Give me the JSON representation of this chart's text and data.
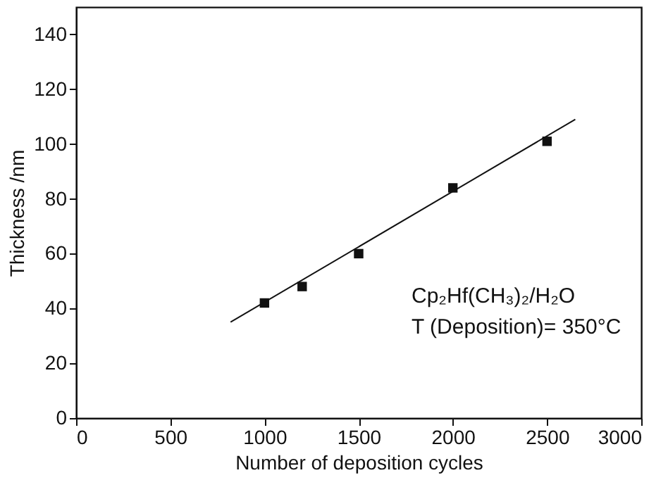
{
  "chart_data": {
    "type": "scatter",
    "xlabel": "Number of deposition cycles",
    "ylabel": "Thickness /nm",
    "xlim": [
      0,
      3000
    ],
    "xticks": [
      0,
      500,
      1000,
      1500,
      2000,
      2500,
      3000
    ],
    "ylim": [
      0,
      150
    ],
    "yticks": [
      0,
      20,
      40,
      60,
      80,
      100,
      120,
      140
    ],
    "series": [
      {
        "color": "#111111",
        "marker": "square",
        "x": [
          1000,
          1200,
          1500,
          2000,
          2500
        ],
        "values": [
          42,
          48,
          60,
          84,
          101
        ]
      },
      {
        "type": "line",
        "color": "#111111",
        "line_style": "solid",
        "x": [
          820,
          2650
        ],
        "values": [
          35,
          109
        ]
      }
    ],
    "annotations": [
      "Cp₂Hf(CH₃)₂/H₂O",
      "T (Deposition)= 350°C"
    ],
    "grid": false
  }
}
